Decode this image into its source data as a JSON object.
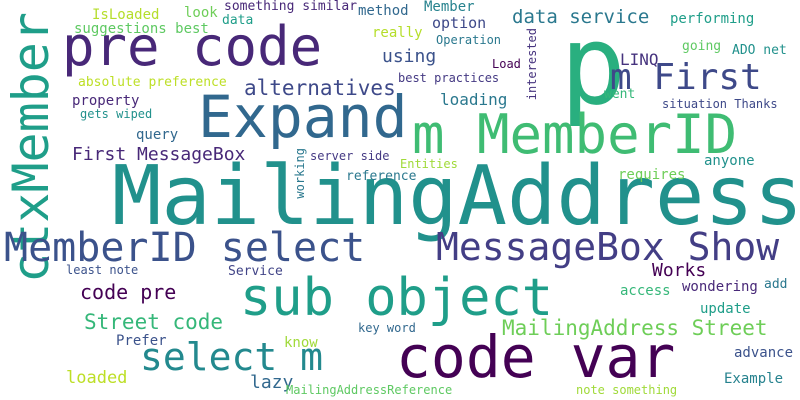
{
  "words": [
    {
      "text": "MailingAddress",
      "color": "#21918c",
      "vertical": false
    },
    {
      "text": "p",
      "color": "#29af7f",
      "vertical": false
    },
    {
      "text": "Expand",
      "color": "#31688e",
      "vertical": false
    },
    {
      "text": "m MemberID",
      "color": "#3fbc73",
      "vertical": false
    },
    {
      "text": "pre code",
      "color": "#482878",
      "vertical": false
    },
    {
      "text": "code var",
      "color": "#440154",
      "vertical": false
    },
    {
      "text": "sub object",
      "color": "#1f9e89",
      "vertical": false
    },
    {
      "text": "ctxMember",
      "color": "#1f9e89",
      "vertical": true
    },
    {
      "text": "MemberID select",
      "color": "#3b528b",
      "vertical": false
    },
    {
      "text": "MessageBox Show",
      "color": "#433e85",
      "vertical": false
    },
    {
      "text": "select m",
      "color": "#23898e",
      "vertical": false
    },
    {
      "text": "m First",
      "color": "#3e4989",
      "vertical": false
    },
    {
      "text": "MailingAddress Street",
      "color": "#6ece58",
      "vertical": false
    },
    {
      "text": "Street code",
      "color": "#35b779",
      "vertical": false
    },
    {
      "text": "alternatives",
      "color": "#3e4989",
      "vertical": false
    },
    {
      "text": "First MessageBox",
      "color": "#482878",
      "vertical": false
    },
    {
      "text": "code pre",
      "color": "#440154",
      "vertical": false
    },
    {
      "text": "data service",
      "color": "#2a788e",
      "vertical": false
    },
    {
      "text": "Works",
      "color": "#440154",
      "vertical": false
    },
    {
      "text": "loaded",
      "color": "#bddf26",
      "vertical": false
    },
    {
      "text": "lazy",
      "color": "#31688e",
      "vertical": false
    },
    {
      "text": "using",
      "color": "#3b528b",
      "vertical": false
    },
    {
      "text": "LINQ",
      "color": "#46337e",
      "vertical": false
    },
    {
      "text": "loading",
      "color": "#2a788e",
      "vertical": false
    },
    {
      "text": "IsLoaded",
      "color": "#b5de2b",
      "vertical": false
    },
    {
      "text": "suggestions best",
      "color": "#5ec962",
      "vertical": false
    },
    {
      "text": "look",
      "color": "#6ece58",
      "vertical": false
    },
    {
      "text": "something similar",
      "color": "#482878",
      "vertical": false
    },
    {
      "text": "method",
      "color": "#31688e",
      "vertical": false
    },
    {
      "text": "Member",
      "color": "#26828e",
      "vertical": false
    },
    {
      "text": "option",
      "color": "#3e4989",
      "vertical": false
    },
    {
      "text": "data",
      "color": "#1f9e89",
      "vertical": false
    },
    {
      "text": "really",
      "color": "#b5de2b",
      "vertical": false
    },
    {
      "text": "Operation",
      "color": "#2a788e",
      "vertical": false
    },
    {
      "text": "performing",
      "color": "#1f9e89",
      "vertical": false
    },
    {
      "text": "going",
      "color": "#5ec962",
      "vertical": false
    },
    {
      "text": "ADO net",
      "color": "#21918c",
      "vertical": false
    },
    {
      "text": "interested",
      "color": "#46337e",
      "vertical": true
    },
    {
      "text": "Load",
      "color": "#440154",
      "vertical": false
    },
    {
      "text": "best practices",
      "color": "#443983",
      "vertical": false
    },
    {
      "text": "absolute preference",
      "color": "#bddf26",
      "vertical": false
    },
    {
      "text": "property",
      "color": "#482878",
      "vertical": false
    },
    {
      "text": "gets wiped",
      "color": "#21918c",
      "vertical": false
    },
    {
      "text": "went",
      "color": "#35b779",
      "vertical": false
    },
    {
      "text": "situation Thanks",
      "color": "#3e4989",
      "vertical": false
    },
    {
      "text": "query",
      "color": "#31688e",
      "vertical": false
    },
    {
      "text": "server side",
      "color": "#443983",
      "vertical": false
    },
    {
      "text": "Entities",
      "color": "#a0da39",
      "vertical": false
    },
    {
      "text": "working",
      "color": "#2a788e",
      "vertical": true
    },
    {
      "text": "reference",
      "color": "#2a788e",
      "vertical": false
    },
    {
      "text": "requires",
      "color": "#6ece58",
      "vertical": false
    },
    {
      "text": "anyone",
      "color": "#21918c",
      "vertical": false
    },
    {
      "text": "least note",
      "color": "#3b528b",
      "vertical": false
    },
    {
      "text": "Service",
      "color": "#414487",
      "vertical": false
    },
    {
      "text": "access",
      "color": "#35b779",
      "vertical": false
    },
    {
      "text": "wondering",
      "color": "#482878",
      "vertical": false
    },
    {
      "text": "add",
      "color": "#2a788e",
      "vertical": false
    },
    {
      "text": "update",
      "color": "#1f9e89",
      "vertical": false
    },
    {
      "text": "key word",
      "color": "#31688e",
      "vertical": false
    },
    {
      "text": "Prefer",
      "color": "#3b528b",
      "vertical": false
    },
    {
      "text": "know",
      "color": "#a0da39",
      "vertical": false
    },
    {
      "text": "advance",
      "color": "#3b528b",
      "vertical": false
    },
    {
      "text": "Example",
      "color": "#26828e",
      "vertical": false
    },
    {
      "text": "MailingAddressReference",
      "color": "#5ec962",
      "vertical": false
    },
    {
      "text": "note something",
      "color": "#a0da39",
      "vertical": false
    }
  ]
}
